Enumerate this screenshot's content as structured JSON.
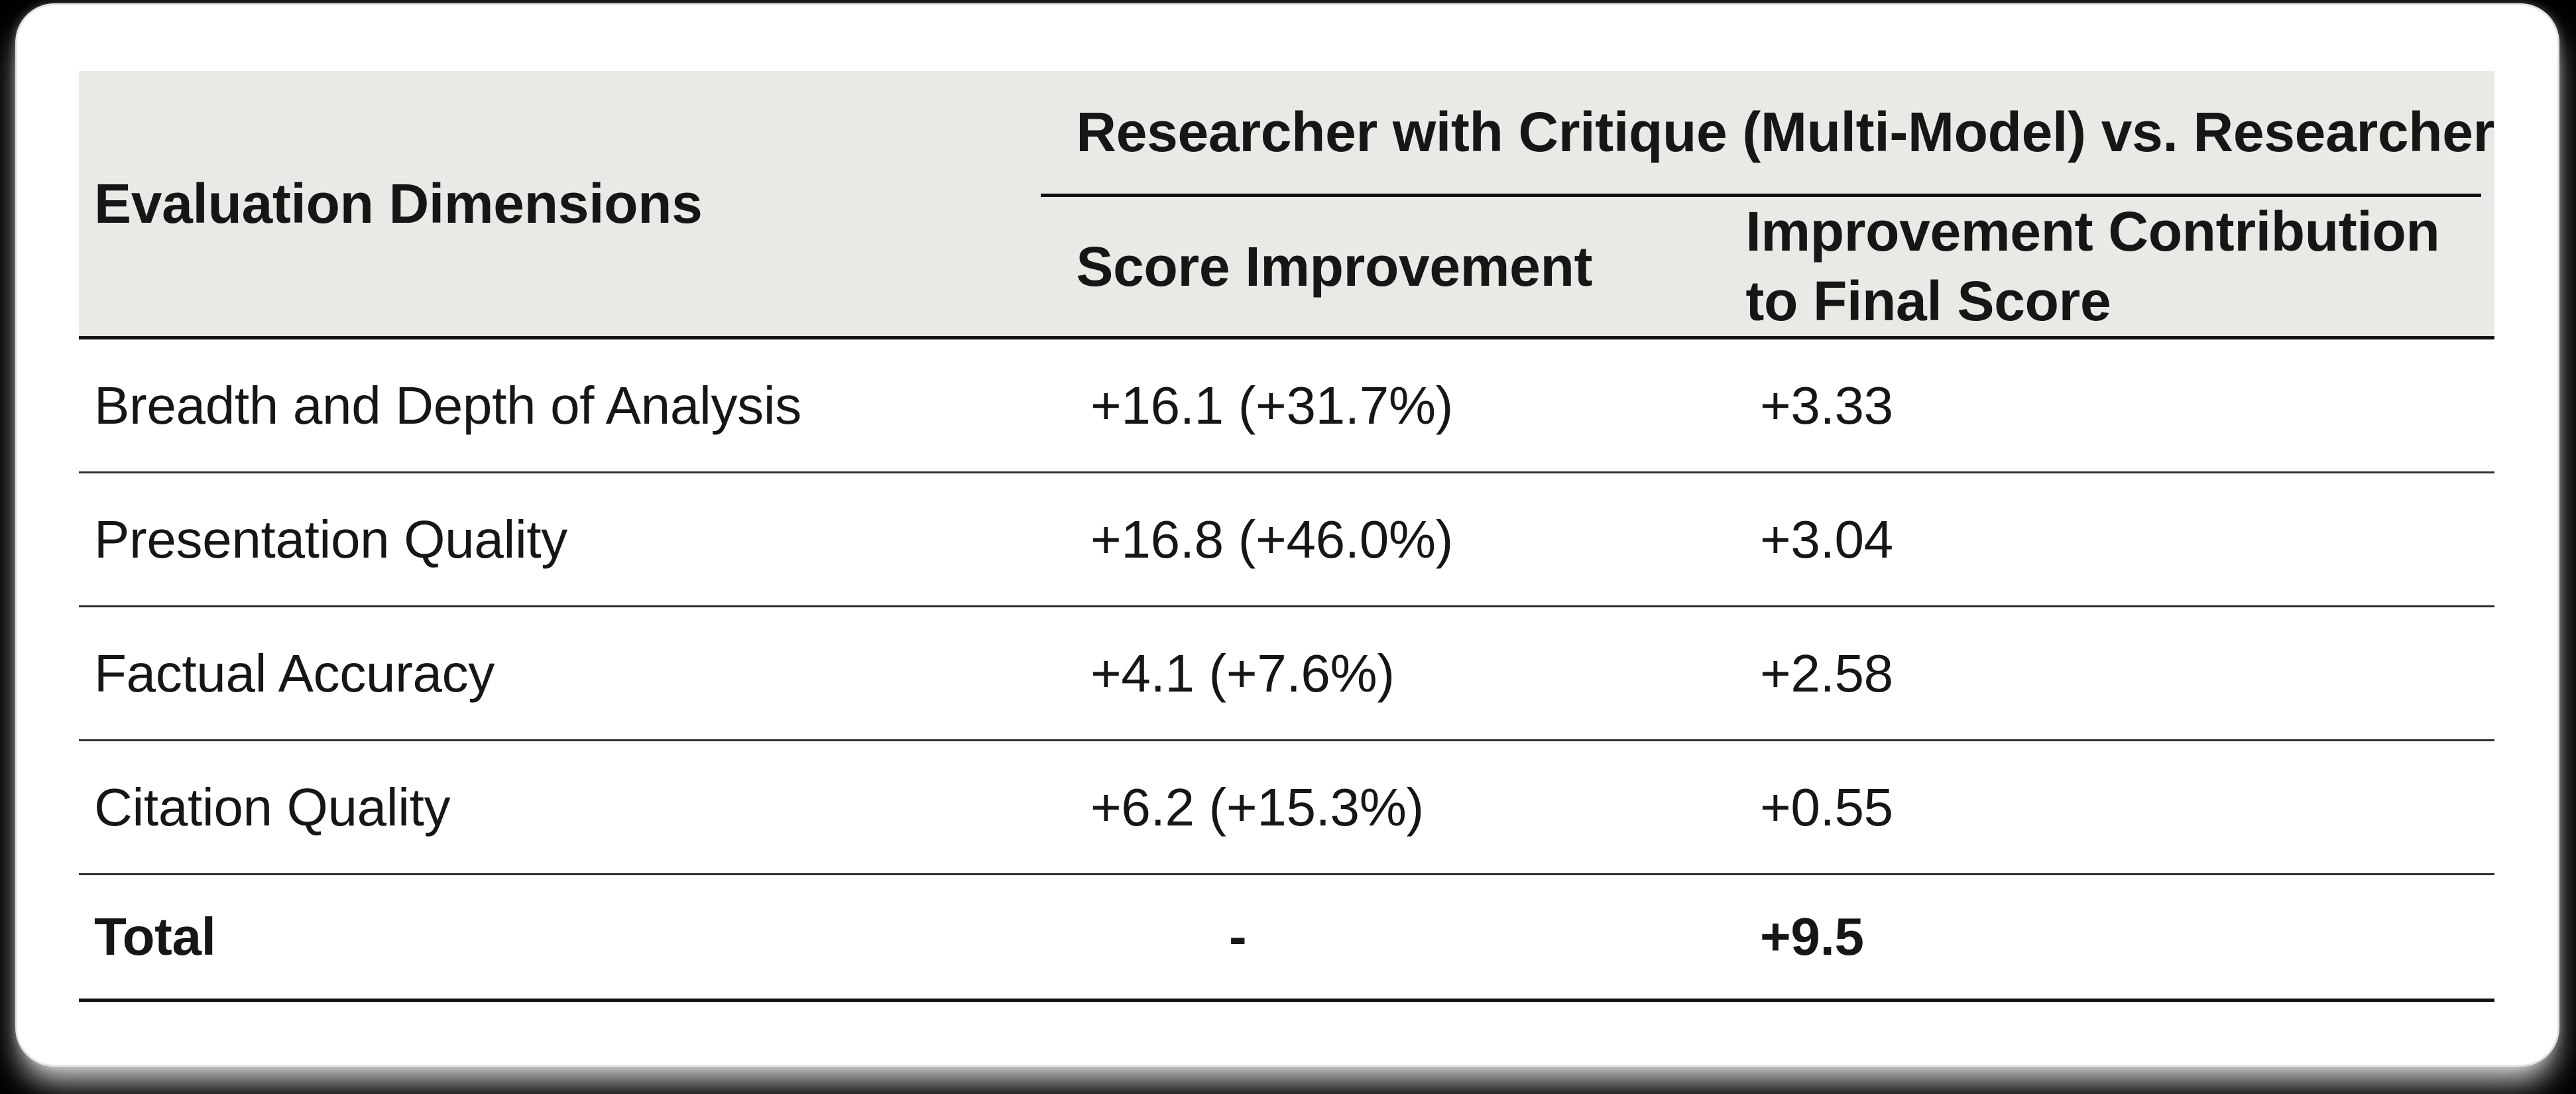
{
  "table": {
    "col1_header": "Evaluation Dimensions",
    "span_header": "Researcher with Critique (Multi-Model) vs. Researcher",
    "sub_headers": {
      "score_improvement": "Score Improvement",
      "contribution": "Improvement Contribution to Final Score"
    },
    "rows": [
      {
        "dimension": "Breadth and Depth of Analysis",
        "score": "+16.1 (+31.7%)",
        "contribution": "+3.33"
      },
      {
        "dimension": "Presentation Quality",
        "score": "+16.8 (+46.0%)",
        "contribution": "+3.04"
      },
      {
        "dimension": "Factual Accuracy",
        "score": "+4.1 (+7.6%)",
        "contribution": "+2.58"
      },
      {
        "dimension": "Citation Quality",
        "score": "+6.2 (+15.3%)",
        "contribution": "+0.55"
      },
      {
        "dimension": "Total",
        "score": "-",
        "contribution": "+9.5"
      }
    ],
    "colors": {
      "page_bg": "#000000",
      "card_bg": "#ffffff",
      "header_band_bg": "#EBE9E6",
      "rule": "#111111",
      "row_rule": "#2e2e2e",
      "text": "#161616"
    }
  },
  "chart_data": {
    "type": "table",
    "title": "Researcher with Critique (Multi-Model) vs. Researcher",
    "columns": [
      "Evaluation Dimensions",
      "Score Improvement",
      "Improvement Contribution to Final Score"
    ],
    "rows": [
      [
        "Breadth and Depth of Analysis",
        "+16.1 (+31.7%)",
        "+3.33"
      ],
      [
        "Presentation Quality",
        "+16.8 (+46.0%)",
        "+3.04"
      ],
      [
        "Factual Accuracy",
        "+4.1 (+7.6%)",
        "+2.58"
      ],
      [
        "Citation Quality",
        "+6.2 (+15.3%)",
        "+0.55"
      ],
      [
        "Total",
        "-",
        "+9.5"
      ]
    ]
  }
}
